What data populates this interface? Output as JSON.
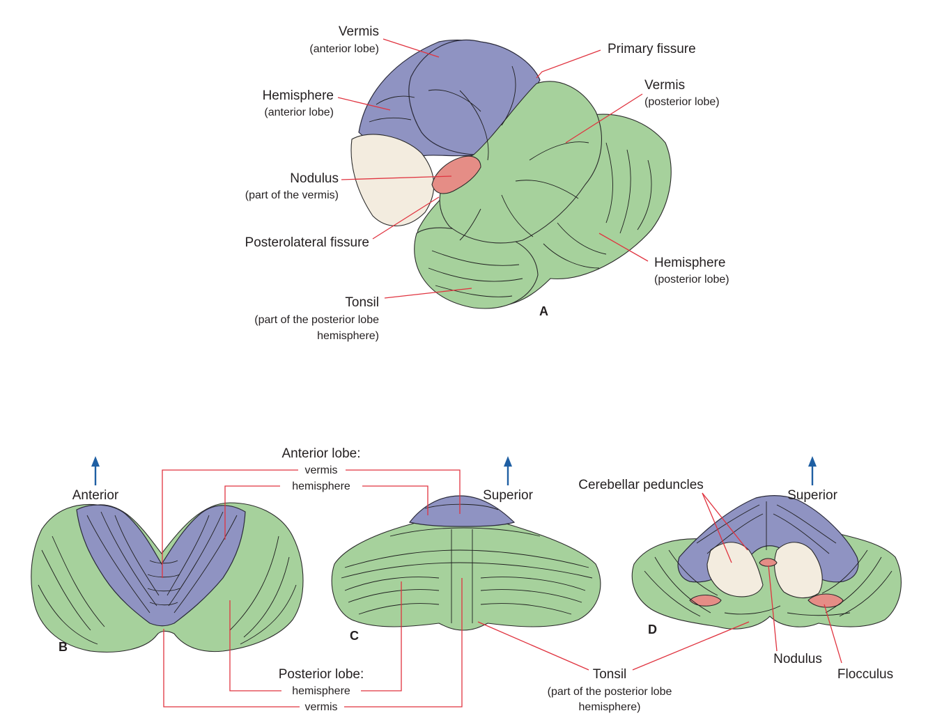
{
  "panel_a": {
    "panel_label": "A",
    "vermis_anterior": {
      "title": "Vermis",
      "sub": "(anterior lobe)"
    },
    "hemisphere_anterior": {
      "title": "Hemisphere",
      "sub": "(anterior lobe)"
    },
    "nodulus": {
      "title": "Nodulus",
      "sub": "(part of the vermis)"
    },
    "posterolateral_fissure": "Posterolateral fissure",
    "tonsil": {
      "title": "Tonsil",
      "sub1": "(part of the posterior lobe",
      "sub2": "hemisphere)"
    },
    "primary_fissure": "Primary fissure",
    "vermis_posterior": {
      "title": "Vermis",
      "sub": "(posterior lobe)"
    },
    "hemisphere_posterior": {
      "title": "Hemisphere",
      "sub": "(posterior lobe)"
    }
  },
  "panel_b": {
    "panel_label": "B",
    "orientation": "Anterior"
  },
  "panel_c": {
    "panel_label": "C",
    "orientation": "Superior"
  },
  "panel_d": {
    "panel_label": "D",
    "orientation": "Superior",
    "cerebellar_peduncles": "Cerebellar peduncles",
    "nodulus": "Nodulus",
    "flocculus": "Flocculus"
  },
  "shared_labels": {
    "anterior_lobe": "Anterior lobe:",
    "anterior_vermis": "vermis",
    "anterior_hemisphere": "hemisphere",
    "posterior_lobe": "Posterior lobe:",
    "posterior_hemisphere": "hemisphere",
    "posterior_vermis": "vermis",
    "tonsil": {
      "title": "Tonsil",
      "sub1": "(part of the posterior lobe",
      "sub2": "hemisphere)"
    }
  },
  "colors": {
    "anterior_lobe": "#8f93c2",
    "posterior_lobe": "#a6d19c",
    "nodulus_flocculus": "#e58d86",
    "leader_line": "#e0333f",
    "orientation_arrow": "#1f5fa3"
  }
}
